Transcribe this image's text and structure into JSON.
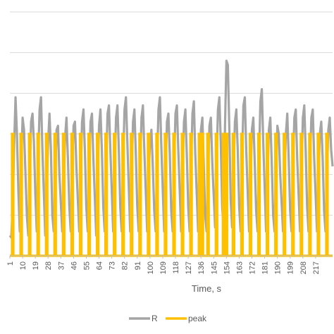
{
  "chart_data": {
    "type": "line",
    "xlabel": "Time, s",
    "ylabel": "",
    "title": "",
    "ylim": [
      0,
      6
    ],
    "gridlines": [
      1,
      2,
      3,
      4,
      5,
      6
    ],
    "grid": true,
    "legend_position": "bottom",
    "x_tick_labels": [
      "1",
      "10",
      "19",
      "28",
      "37",
      "46",
      "55",
      "64",
      "73",
      "82",
      "91",
      "100",
      "109",
      "118",
      "127",
      "136",
      "145",
      "154",
      "163",
      "172",
      "181",
      "190",
      "199",
      "208",
      "217"
    ],
    "x_range": [
      1,
      229
    ],
    "series": [
      {
        "name": "R",
        "color": "#A5A5A5",
        "points": [
          [
            1,
            0.5
          ],
          [
            2,
            0.45
          ],
          [
            3,
            1.2
          ],
          [
            4,
            2.7
          ],
          [
            5,
            3.9
          ],
          [
            6,
            3.0
          ],
          [
            7,
            1.6
          ],
          [
            8,
            0.6
          ],
          [
            9,
            2.2
          ],
          [
            10,
            3.4
          ],
          [
            11,
            3.1
          ],
          [
            13,
            1.0
          ],
          [
            14,
            0.5
          ],
          [
            15,
            2.0
          ],
          [
            16,
            3.3
          ],
          [
            17,
            3.5
          ],
          [
            18,
            2.8
          ],
          [
            19,
            1.5
          ],
          [
            20,
            0.6
          ],
          [
            21,
            2.4
          ],
          [
            22,
            3.6
          ],
          [
            23,
            3.9
          ],
          [
            24,
            2.6
          ],
          [
            26,
            0.5
          ],
          [
            27,
            1.6
          ],
          [
            28,
            2.8
          ],
          [
            29,
            3.5
          ],
          [
            30,
            2.6
          ],
          [
            31,
            1.0
          ],
          [
            32,
            0.6
          ],
          [
            33,
            1.8
          ],
          [
            34,
            3.1
          ],
          [
            35,
            3.2
          ],
          [
            36,
            2.0
          ],
          [
            38,
            0.6
          ],
          [
            39,
            1.8
          ],
          [
            40,
            2.9
          ],
          [
            41,
            3.4
          ],
          [
            42,
            2.4
          ],
          [
            43,
            1.2
          ],
          [
            44,
            0.6
          ],
          [
            45,
            2.0
          ],
          [
            46,
            3.2
          ],
          [
            47,
            3.3
          ],
          [
            48,
            2.2
          ],
          [
            50,
            0.6
          ],
          [
            51,
            1.9
          ],
          [
            52,
            3.3
          ],
          [
            53,
            3.6
          ],
          [
            54,
            2.6
          ],
          [
            55,
            1.2
          ],
          [
            56,
            0.6
          ],
          [
            57,
            2.1
          ],
          [
            58,
            3.3
          ],
          [
            59,
            3.5
          ],
          [
            60,
            2.4
          ],
          [
            62,
            0.5
          ],
          [
            63,
            1.9
          ],
          [
            64,
            3.2
          ],
          [
            65,
            3.6
          ],
          [
            66,
            2.6
          ],
          [
            67,
            1.2
          ],
          [
            68,
            0.6
          ],
          [
            69,
            2.2
          ],
          [
            70,
            3.5
          ],
          [
            71,
            3.7
          ],
          [
            72,
            2.6
          ],
          [
            74,
            0.6
          ],
          [
            75,
            2.1
          ],
          [
            76,
            3.4
          ],
          [
            77,
            3.7
          ],
          [
            78,
            2.6
          ],
          [
            79,
            1.2
          ],
          [
            80,
            0.6
          ],
          [
            81,
            2.3
          ],
          [
            82,
            3.6
          ],
          [
            83,
            3.9
          ],
          [
            84,
            2.8
          ],
          [
            86,
            0.6
          ],
          [
            87,
            2.0
          ],
          [
            88,
            3.3
          ],
          [
            89,
            3.6
          ],
          [
            90,
            2.5
          ],
          [
            91,
            1.2
          ],
          [
            92,
            0.6
          ],
          [
            93,
            2.1
          ],
          [
            94,
            3.4
          ],
          [
            95,
            3.7
          ],
          [
            96,
            2.6
          ],
          [
            98,
            0.6
          ],
          [
            99,
            1.9
          ],
          [
            100,
            2.8
          ],
          [
            101,
            3.1
          ],
          [
            102,
            2.2
          ],
          [
            103,
            1.1
          ],
          [
            104,
            0.6
          ],
          [
            105,
            2.3
          ],
          [
            106,
            3.6
          ],
          [
            107,
            3.9
          ],
          [
            108,
            2.7
          ],
          [
            110,
            0.6
          ],
          [
            111,
            2.1
          ],
          [
            112,
            3.3
          ],
          [
            113,
            3.5
          ],
          [
            114,
            2.5
          ],
          [
            115,
            1.1
          ],
          [
            116,
            0.6
          ],
          [
            117,
            2.2
          ],
          [
            118,
            3.5
          ],
          [
            119,
            3.7
          ],
          [
            120,
            2.6
          ],
          [
            122,
            0.6
          ],
          [
            123,
            2.0
          ],
          [
            124,
            3.3
          ],
          [
            125,
            3.6
          ],
          [
            126,
            2.5
          ],
          [
            127,
            1.2
          ],
          [
            128,
            0.6
          ],
          [
            129,
            2.2
          ],
          [
            130,
            3.5
          ],
          [
            131,
            3.8
          ],
          [
            132,
            2.5
          ],
          [
            134,
            0.6
          ],
          [
            135,
            1.8
          ],
          [
            136,
            3.1
          ],
          [
            137,
            3.4
          ],
          [
            138,
            2.2
          ],
          [
            139,
            1.0
          ],
          [
            140,
            0.6
          ],
          [
            141,
            2.0
          ],
          [
            142,
            3.2
          ],
          [
            143,
            3.4
          ],
          [
            144,
            2.3
          ],
          [
            146,
            0.7
          ],
          [
            147,
            2.2
          ],
          [
            148,
            3.6
          ],
          [
            149,
            3.9
          ],
          [
            150,
            2.8
          ],
          [
            151,
            1.2
          ],
          [
            152,
            0.7
          ],
          [
            153,
            3.2
          ],
          [
            154,
            4.8
          ],
          [
            155,
            4.7
          ],
          [
            156,
            3.2
          ],
          [
            157,
            1.4
          ],
          [
            158,
            0.7
          ],
          [
            159,
            2.0
          ],
          [
            160,
            3.3
          ],
          [
            161,
            3.6
          ],
          [
            162,
            2.6
          ],
          [
            163,
            1.2
          ],
          [
            164,
            0.6
          ],
          [
            165,
            2.3
          ],
          [
            166,
            3.7
          ],
          [
            167,
            3.9
          ],
          [
            168,
            2.6
          ],
          [
            170,
            0.6
          ],
          [
            171,
            1.9
          ],
          [
            172,
            3.1
          ],
          [
            173,
            3.4
          ],
          [
            174,
            2.3
          ],
          [
            175,
            1.1
          ],
          [
            176,
            0.6
          ],
          [
            177,
            2.4
          ],
          [
            178,
            3.8
          ],
          [
            179,
            4.1
          ],
          [
            180,
            2.8
          ],
          [
            182,
            0.6
          ],
          [
            183,
            1.9
          ],
          [
            184,
            3.1
          ],
          [
            185,
            3.4
          ],
          [
            186,
            2.3
          ],
          [
            187,
            1.0
          ],
          [
            188,
            0.6
          ],
          [
            189,
            2.1
          ],
          [
            190,
            3.2
          ],
          [
            191,
            3.0
          ],
          [
            192,
            2.0
          ],
          [
            194,
            0.6
          ],
          [
            195,
            1.8
          ],
          [
            196,
            3.0
          ],
          [
            197,
            3.5
          ],
          [
            198,
            2.4
          ],
          [
            199,
            1.1
          ],
          [
            200,
            0.6
          ],
          [
            201,
            2.2
          ],
          [
            202,
            3.4
          ],
          [
            203,
            3.6
          ],
          [
            204,
            2.4
          ],
          [
            206,
            0.6
          ],
          [
            207,
            2.0
          ],
          [
            208,
            3.4
          ],
          [
            209,
            3.7
          ],
          [
            210,
            2.6
          ],
          [
            211,
            1.2
          ],
          [
            212,
            0.6
          ],
          [
            213,
            2.2
          ],
          [
            214,
            3.4
          ],
          [
            215,
            3.6
          ],
          [
            216,
            2.4
          ],
          [
            218,
            0.6
          ],
          [
            219,
            1.8
          ],
          [
            220,
            3.0
          ],
          [
            221,
            3.3
          ],
          [
            222,
            2.4
          ],
          [
            223,
            1.1
          ],
          [
            224,
            0.6
          ],
          [
            225,
            2.0
          ],
          [
            226,
            3.1
          ],
          [
            227,
            3.4
          ],
          [
            228,
            2.6
          ],
          [
            229,
            2.2
          ]
        ]
      },
      {
        "name": "peak",
        "color": "#FFC000",
        "pulses": [
          3,
          9,
          15,
          21,
          27,
          33,
          39,
          45,
          51,
          57,
          63,
          69,
          75,
          81,
          87,
          93,
          99,
          105,
          111,
          117,
          123,
          129,
          135,
          137,
          141,
          147,
          152,
          154,
          159,
          165,
          171,
          177,
          183,
          189,
          195,
          201,
          207,
          213,
          219,
          225
        ],
        "pulse_high": 3,
        "pulse_low": 0
      }
    ]
  }
}
